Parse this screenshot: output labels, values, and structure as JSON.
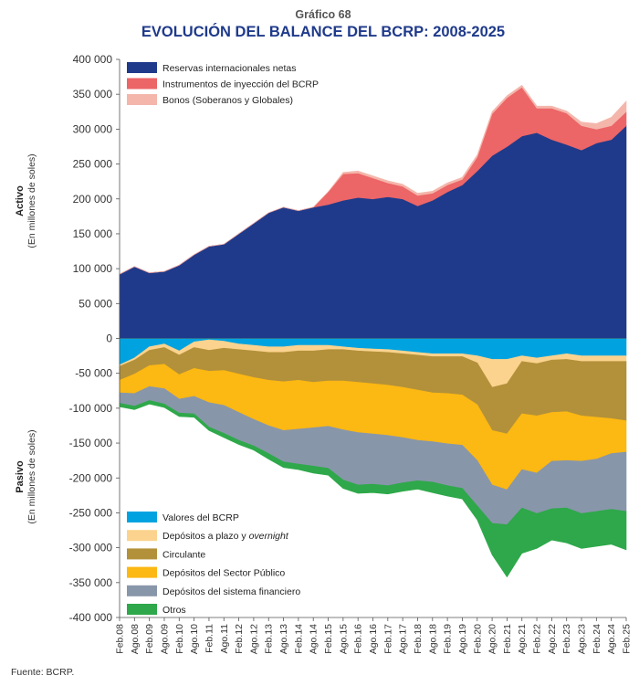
{
  "header": {
    "supertitle": "Gráfico 68",
    "title": "EVOLUCIÓN DEL BALANCE DEL BCRP: 2008-2025"
  },
  "source": "Fuente: BCRP.",
  "chart_data": {
    "type": "area",
    "stacking": "stacked",
    "x": [
      "Feb.08",
      "Ago.08",
      "Feb.09",
      "Ago.09",
      "Feb.10",
      "Ago.10",
      "Feb.11",
      "Ago.11",
      "Feb.12",
      "Ago.12",
      "Feb.13",
      "Ago.13",
      "Feb.14",
      "Ago.14",
      "Feb.15",
      "Ago.15",
      "Feb.16",
      "Ago.16",
      "Feb.17",
      "Ago.17",
      "Feb.18",
      "Ago.18",
      "Feb.19",
      "Ago.19",
      "Feb.20",
      "Ago.20",
      "Feb.21",
      "Ago.21",
      "Feb.22",
      "Ago.22",
      "Feb.23",
      "Ago.23",
      "Feb.24",
      "Ago.24",
      "Feb.25"
    ],
    "ylim": [
      -400000,
      400000
    ],
    "yticks": [
      400000,
      350000,
      300000,
      250000,
      200000,
      150000,
      100000,
      50000,
      0,
      -50000,
      -100000,
      -150000,
      -200000,
      -250000,
      -300000,
      -350000,
      -400000
    ],
    "ytick_labels": [
      "400 000",
      "350 000",
      "300 000",
      "250 000",
      "200 000",
      "150 000",
      "100 000",
      "50 000",
      "0",
      "-50 000",
      "-100 000",
      "-150 000",
      "-200 000",
      "-250 000",
      "-300 000",
      "-350 000",
      "-400 000"
    ],
    "activo": {
      "ylabel": "Activo",
      "ylabel_sub": "(En millones de soles)",
      "series": [
        {
          "name": "Reservas internacionales netas",
          "color": "#1f3a8a",
          "values": [
            92000,
            103000,
            94000,
            96000,
            105000,
            120000,
            132000,
            135000,
            150000,
            165000,
            180000,
            188000,
            183000,
            188000,
            192000,
            198000,
            202000,
            200000,
            203000,
            200000,
            190000,
            198000,
            210000,
            220000,
            240000,
            262000,
            275000,
            290000,
            295000,
            285000,
            278000,
            270000,
            280000,
            285000,
            305000
          ]
        },
        {
          "name": "Instrumentos de inyección del BCRP",
          "color": "#ec6567",
          "values": [
            0,
            0,
            0,
            0,
            0,
            0,
            0,
            0,
            0,
            0,
            0,
            0,
            0,
            0,
            18000,
            38000,
            35000,
            30000,
            20000,
            18000,
            15000,
            10000,
            10000,
            8000,
            20000,
            60000,
            70000,
            70000,
            35000,
            45000,
            45000,
            35000,
            20000,
            20000,
            20000
          ]
        },
        {
          "name": "Bonos (Soberanos y Globales)",
          "color": "#f4b6ab",
          "values": [
            0,
            0,
            0,
            0,
            0,
            0,
            0,
            0,
            0,
            0,
            0,
            0,
            0,
            0,
            0,
            2000,
            3000,
            3000,
            3000,
            3000,
            3000,
            3000,
            3000,
            3000,
            3000,
            3000,
            3000,
            3000,
            3000,
            3000,
            3000,
            5000,
            8000,
            12000,
            15000
          ]
        }
      ]
    },
    "pasivo": {
      "ylabel": "Pasivo",
      "ylabel_sub": "(En millones de soles)",
      "series": [
        {
          "name": "Valores del BCRP",
          "color": "#00a3e0",
          "values": [
            -38000,
            -28000,
            -12000,
            -8000,
            -18000,
            -5000,
            -2000,
            -4000,
            -8000,
            -10000,
            -12000,
            -12000,
            -10000,
            -10000,
            -10000,
            -12000,
            -14000,
            -15000,
            -16000,
            -18000,
            -20000,
            -22000,
            -22000,
            -22000,
            -25000,
            -30000,
            -30000,
            -25000,
            -28000,
            -25000,
            -22000,
            -25000,
            -25000,
            -25000,
            -25000
          ]
        },
        {
          "name": "Depósitos a plazo y overnight",
          "color": "#fbd38e",
          "values": [
            -2000,
            -3000,
            -5000,
            -5000,
            -6000,
            -8000,
            -15000,
            -10000,
            -8000,
            -8000,
            -8000,
            -8000,
            -8000,
            -8000,
            -6000,
            -4000,
            -4000,
            -4000,
            -4000,
            -4000,
            -4000,
            -4000,
            -4000,
            -4000,
            -10000,
            -40000,
            -35000,
            -8000,
            -8000,
            -6000,
            -8000,
            -8000,
            -8000,
            -8000,
            -8000
          ]
        },
        {
          "name": "Circulante",
          "color": "#b3913a",
          "values": [
            -20000,
            -20000,
            -22000,
            -24000,
            -28000,
            -30000,
            -30000,
            -32000,
            -35000,
            -38000,
            -40000,
            -42000,
            -42000,
            -45000,
            -45000,
            -45000,
            -45000,
            -46000,
            -47000,
            -48000,
            -50000,
            -52000,
            -53000,
            -55000,
            -60000,
            -62000,
            -72000,
            -75000,
            -75000,
            -75000,
            -75000,
            -78000,
            -80000,
            -82000,
            -85000
          ]
        },
        {
          "name": "Depósitos del Sector Público",
          "color": "#fcb813",
          "values": [
            -18000,
            -28000,
            -30000,
            -35000,
            -35000,
            -40000,
            -45000,
            -50000,
            -55000,
            -60000,
            -65000,
            -70000,
            -70000,
            -65000,
            -65000,
            -70000,
            -72000,
            -72000,
            -72000,
            -72000,
            -72000,
            -70000,
            -72000,
            -72000,
            -80000,
            -78000,
            -80000,
            -80000,
            -82000,
            -70000,
            -70000,
            -65000,
            -60000,
            -50000,
            -45000
          ]
        },
        {
          "name": "Depósitos del sistema financiero",
          "color": "#8896aa",
          "values": [
            -15000,
            -18000,
            -20000,
            -22000,
            -20000,
            -25000,
            -35000,
            -40000,
            -40000,
            -38000,
            -40000,
            -45000,
            -50000,
            -55000,
            -60000,
            -72000,
            -75000,
            -72000,
            -72000,
            -65000,
            -58000,
            -58000,
            -60000,
            -62000,
            -65000,
            -55000,
            -50000,
            -55000,
            -58000,
            -68000,
            -68000,
            -75000,
            -75000,
            -80000,
            -85000
          ]
        },
        {
          "name": "Otros",
          "color": "#2ea84a",
          "values": [
            -5000,
            -5000,
            -5000,
            -5000,
            -5000,
            -5000,
            -5000,
            -6000,
            -6000,
            -6000,
            -8000,
            -8000,
            -8000,
            -10000,
            -10000,
            -12000,
            -12000,
            -12000,
            -12000,
            -12000,
            -12000,
            -15000,
            -15000,
            -15000,
            -20000,
            -45000,
            -75000,
            -65000,
            -50000,
            -45000,
            -50000,
            -50000,
            -50000,
            -50000,
            -55000
          ]
        }
      ]
    }
  }
}
